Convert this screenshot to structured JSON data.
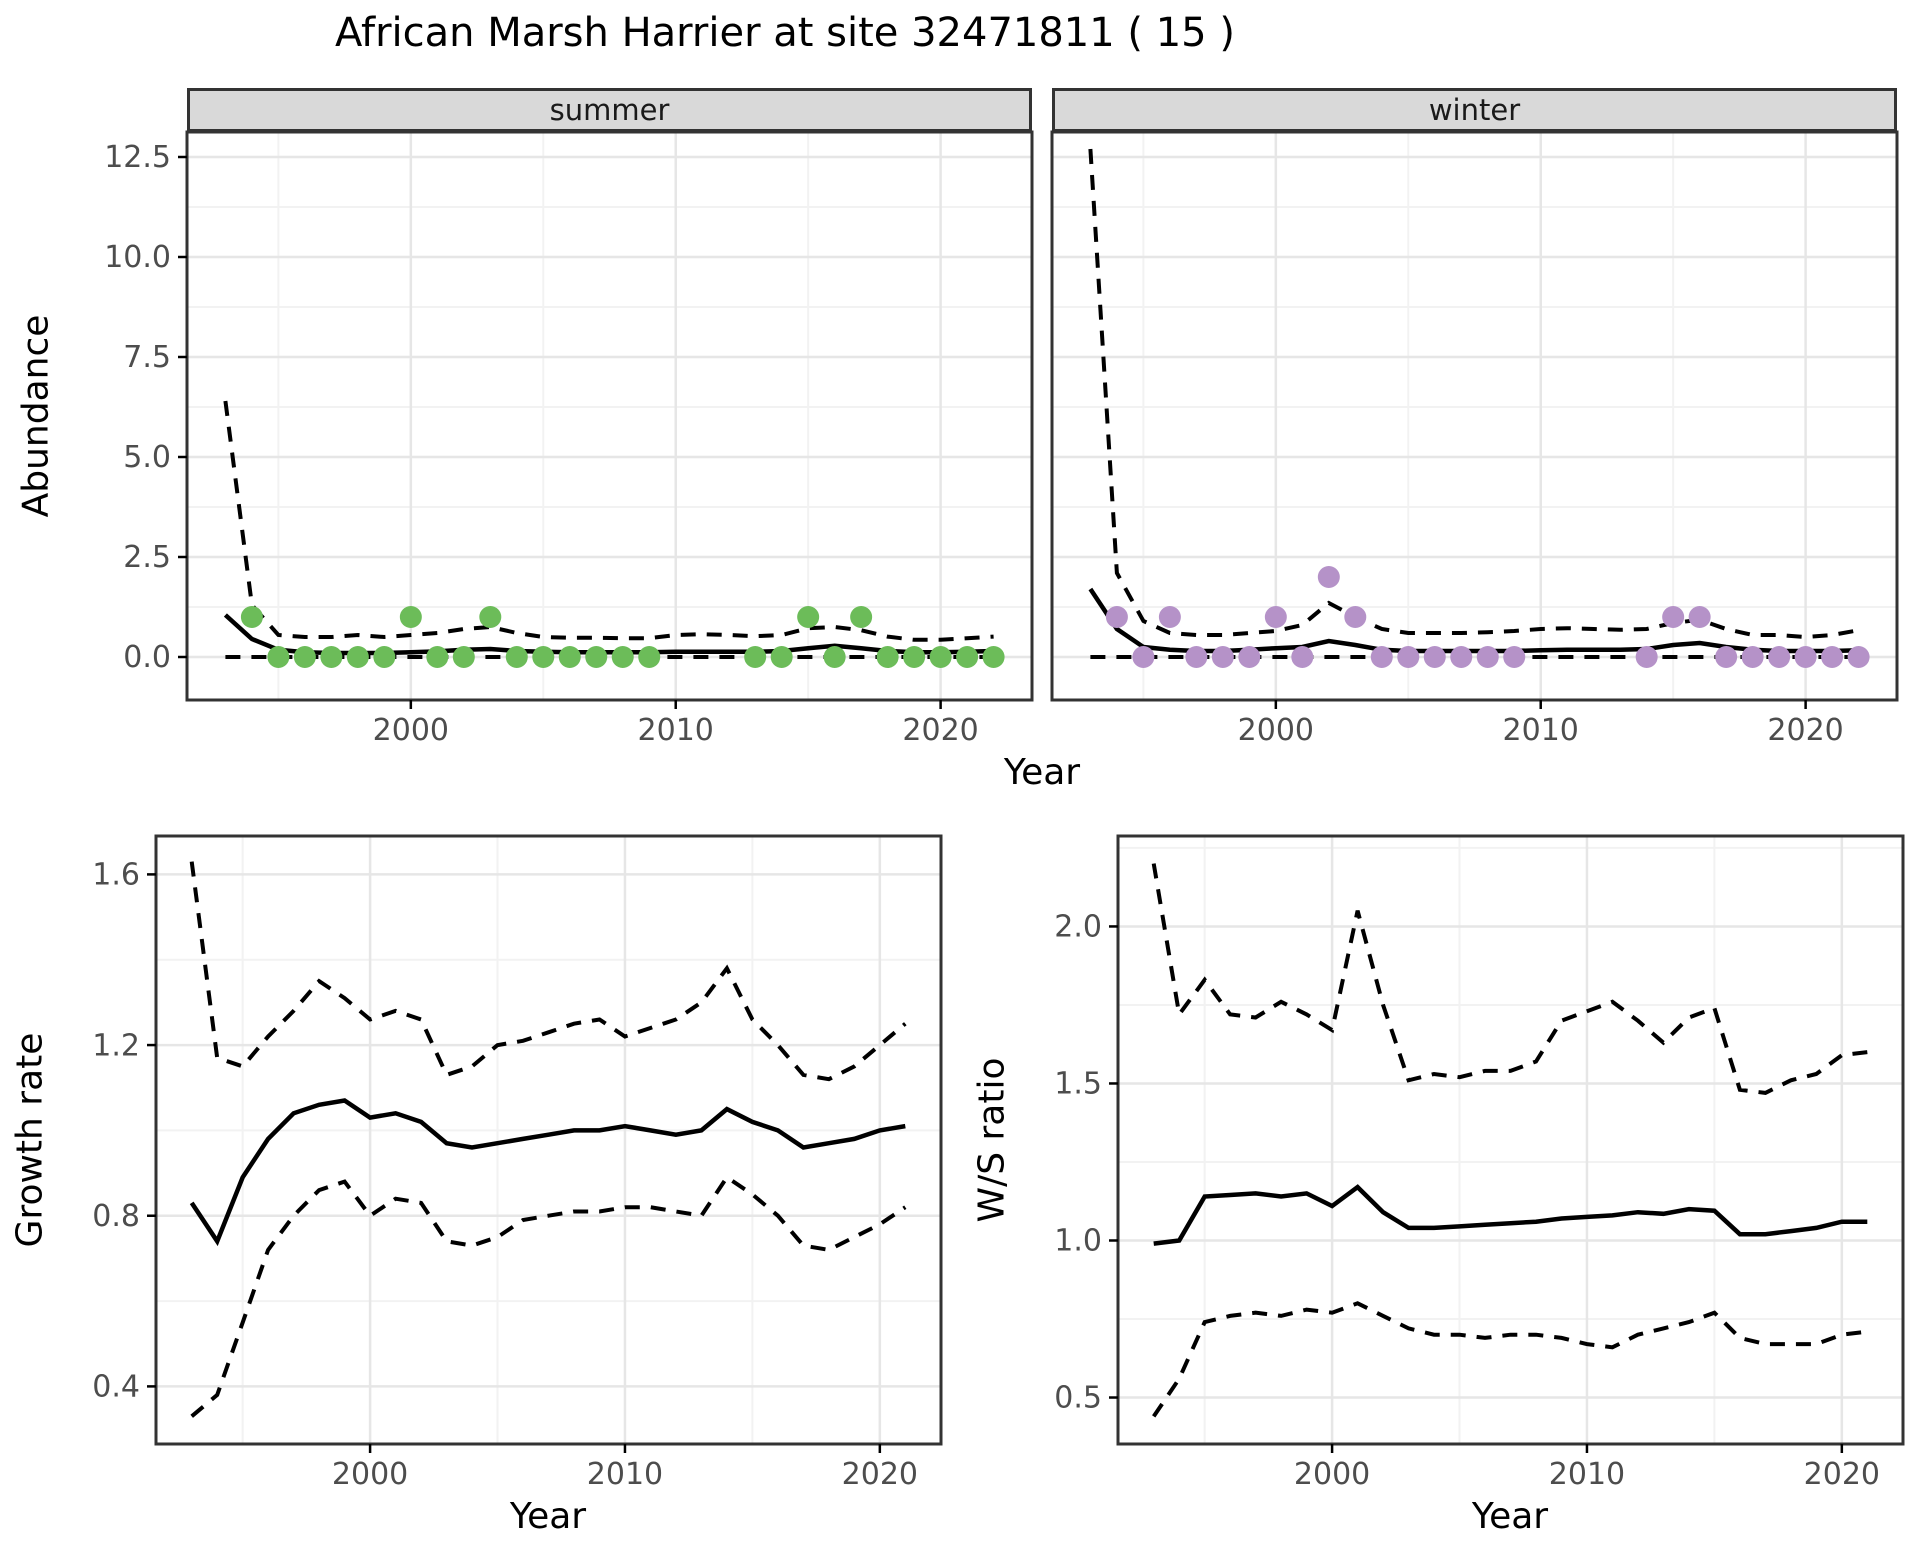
{
  "title": "African Marsh Harrier at site 32471811 ( 15 )",
  "facets": {
    "summer": "summer",
    "winter": "winter"
  },
  "axis_titles": {
    "abundance": "Abundance",
    "year_top": "Year",
    "growth": "Growth rate",
    "year_growth": "Year",
    "ws": "W/S ratio",
    "year_ws": "Year"
  },
  "colors": {
    "summer_points": "#6cbc59",
    "winter_points": "#b592c8",
    "line": "#000000",
    "strip_bg": "#d9d9d9",
    "grid_major": "#e6e6e6",
    "grid_minor": "#f2f2f2",
    "panel_border": "#333333",
    "tick_label": "#4d4d4d"
  },
  "chart_data": [
    {
      "id": "abundance_summer",
      "type": "line",
      "facet": "summer",
      "xlabel": "Year",
      "ylabel": "Abundance",
      "x_domain": [
        1991.55,
        2023.45
      ],
      "y_domain": [
        -1.075,
        13.125
      ],
      "x_major": [
        2000,
        2010,
        2020
      ],
      "x_major_labels": [
        "2000",
        "2010",
        "2020"
      ],
      "x_minor": [
        1995,
        2005,
        2015
      ],
      "y_major": [
        0,
        2.5,
        5,
        7.5,
        10,
        12.5
      ],
      "y_major_labels": [
        "0.0",
        "2.5",
        "5.0",
        "7.5",
        "10.0",
        "12.5"
      ],
      "y_minor": [
        1.25,
        3.75,
        6.25,
        8.75,
        11.25
      ],
      "years": [
        1993,
        1994,
        1995,
        1996,
        1997,
        1998,
        1999,
        2000,
        2001,
        2002,
        2003,
        2004,
        2005,
        2006,
        2007,
        2008,
        2009,
        2010,
        2011,
        2012,
        2013,
        2014,
        2015,
        2016,
        2017,
        2018,
        2019,
        2020,
        2021,
        2022
      ],
      "median": [
        1.05,
        0.45,
        0.18,
        0.12,
        0.1,
        0.1,
        0.1,
        0.12,
        0.14,
        0.18,
        0.2,
        0.15,
        0.13,
        0.12,
        0.12,
        0.12,
        0.12,
        0.13,
        0.13,
        0.13,
        0.13,
        0.15,
        0.22,
        0.28,
        0.22,
        0.15,
        0.12,
        0.12,
        0.13,
        0.15
      ],
      "upper": [
        6.4,
        1.3,
        0.55,
        0.5,
        0.5,
        0.55,
        0.5,
        0.55,
        0.6,
        0.7,
        0.75,
        0.6,
        0.5,
        0.48,
        0.48,
        0.47,
        0.47,
        0.55,
        0.57,
        0.55,
        0.52,
        0.55,
        0.72,
        0.75,
        0.67,
        0.51,
        0.43,
        0.43,
        0.47,
        0.51
      ],
      "lower": [
        0,
        0,
        0,
        0,
        0,
        0,
        0,
        0,
        0,
        0,
        0,
        0,
        0,
        0,
        0,
        0,
        0,
        0,
        0,
        0,
        0,
        0,
        0,
        0,
        0,
        0,
        0,
        0,
        0,
        0
      ],
      "points": {
        "color": "#6cbc59",
        "years": [
          1994,
          1995,
          1996,
          1997,
          1998,
          1999,
          2000,
          2001,
          2002,
          2003,
          2004,
          2005,
          2006,
          2007,
          2008,
          2009,
          2013,
          2014,
          2015,
          2016,
          2017,
          2018,
          2019,
          2020,
          2021,
          2022
        ],
        "values": [
          1,
          0,
          0,
          0,
          0,
          0,
          1,
          0,
          0,
          1,
          0,
          0,
          0,
          0,
          0,
          0,
          0,
          0,
          1,
          0,
          1,
          0,
          0,
          0,
          0,
          0
        ]
      }
    },
    {
      "id": "abundance_winter",
      "type": "line",
      "facet": "winter",
      "xlabel": "Year",
      "ylabel": "Abundance",
      "x_domain": [
        1991.55,
        2023.45
      ],
      "y_domain": [
        -1.075,
        13.125
      ],
      "x_major": [
        2000,
        2010,
        2020
      ],
      "x_major_labels": [
        "2000",
        "2010",
        "2020"
      ],
      "x_minor": [
        1995,
        2005,
        2015
      ],
      "y_major": [
        0,
        2.5,
        5,
        7.5,
        10,
        12.5
      ],
      "y_major_labels": [
        "0.0",
        "2.5",
        "5.0",
        "7.5",
        "10.0",
        "12.5"
      ],
      "y_minor": [
        1.25,
        3.75,
        6.25,
        8.75,
        11.25
      ],
      "years": [
        1993,
        1994,
        1995,
        1996,
        1997,
        1998,
        1999,
        2000,
        2001,
        2002,
        2003,
        2004,
        2005,
        2006,
        2007,
        2008,
        2009,
        2010,
        2011,
        2012,
        2013,
        2014,
        2015,
        2016,
        2017,
        2018,
        2019,
        2020,
        2021,
        2022
      ],
      "median": [
        1.7,
        0.7,
        0.25,
        0.18,
        0.15,
        0.15,
        0.18,
        0.22,
        0.25,
        0.4,
        0.3,
        0.18,
        0.15,
        0.15,
        0.15,
        0.15,
        0.15,
        0.17,
        0.18,
        0.18,
        0.18,
        0.2,
        0.3,
        0.35,
        0.25,
        0.18,
        0.15,
        0.15,
        0.15,
        0.17
      ],
      "upper": [
        12.7,
        2.1,
        0.9,
        0.6,
        0.55,
        0.55,
        0.6,
        0.65,
        0.8,
        1.35,
        1.0,
        0.7,
        0.6,
        0.6,
        0.6,
        0.62,
        0.65,
        0.7,
        0.72,
        0.7,
        0.68,
        0.7,
        0.85,
        0.93,
        0.7,
        0.55,
        0.55,
        0.5,
        0.55,
        0.67
      ],
      "lower": [
        0,
        0,
        0,
        0,
        0,
        0,
        0,
        0,
        0,
        0,
        0,
        0,
        0,
        0,
        0,
        0,
        0,
        0,
        0,
        0,
        0,
        0,
        0,
        0,
        0,
        0,
        0,
        0,
        0,
        0
      ],
      "points": {
        "color": "#b592c8",
        "years": [
          1994,
          1995,
          1996,
          1997,
          1998,
          1999,
          2000,
          2001,
          2002,
          2003,
          2004,
          2005,
          2006,
          2007,
          2008,
          2009,
          2014,
          2015,
          2016,
          2017,
          2018,
          2019,
          2020,
          2021,
          2022
        ],
        "values": [
          1,
          0,
          1,
          0,
          0,
          0,
          1,
          0,
          2,
          1,
          0,
          0,
          0,
          0,
          0,
          0,
          0,
          1,
          1,
          0,
          0,
          0,
          0,
          0,
          0
        ]
      }
    },
    {
      "id": "growth_rate",
      "type": "line",
      "xlabel": "Year",
      "ylabel": "Growth rate",
      "x_domain": [
        1991.6,
        2022.4
      ],
      "y_domain": [
        0.265,
        1.69
      ],
      "x_major": [
        2000,
        2010,
        2020
      ],
      "x_major_labels": [
        "2000",
        "2010",
        "2020"
      ],
      "x_minor": [
        1995,
        2005,
        2015
      ],
      "y_major": [
        0.4,
        0.8,
        1.2,
        1.6
      ],
      "y_major_labels": [
        "0.4",
        "0.8",
        "1.2",
        "1.6"
      ],
      "y_minor": [
        0.6,
        1.0,
        1.4
      ],
      "years": [
        1993,
        1994,
        1995,
        1996,
        1997,
        1998,
        1999,
        2000,
        2001,
        2002,
        2003,
        2004,
        2005,
        2006,
        2007,
        2008,
        2009,
        2010,
        2011,
        2012,
        2013,
        2014,
        2015,
        2016,
        2017,
        2018,
        2019,
        2020,
        2021
      ],
      "median": [
        0.83,
        0.74,
        0.89,
        0.98,
        1.04,
        1.06,
        1.07,
        1.03,
        1.04,
        1.02,
        0.97,
        0.96,
        0.97,
        0.98,
        0.99,
        1.0,
        1.0,
        1.01,
        1.0,
        0.99,
        1.0,
        1.05,
        1.02,
        1.0,
        0.96,
        0.97,
        0.98,
        1.0,
        1.01
      ],
      "upper": [
        1.63,
        1.17,
        1.15,
        1.22,
        1.28,
        1.35,
        1.31,
        1.26,
        1.28,
        1.26,
        1.13,
        1.15,
        1.2,
        1.21,
        1.23,
        1.25,
        1.26,
        1.22,
        1.24,
        1.26,
        1.3,
        1.38,
        1.26,
        1.2,
        1.13,
        1.12,
        1.15,
        1.2,
        1.25
      ],
      "lower": [
        0.33,
        0.38,
        0.55,
        0.72,
        0.8,
        0.86,
        0.88,
        0.8,
        0.84,
        0.83,
        0.74,
        0.73,
        0.75,
        0.79,
        0.8,
        0.81,
        0.81,
        0.82,
        0.82,
        0.81,
        0.8,
        0.89,
        0.85,
        0.8,
        0.73,
        0.72,
        0.75,
        0.78,
        0.82
      ]
    },
    {
      "id": "ws_ratio",
      "type": "line",
      "xlabel": "Year",
      "ylabel": "W/S ratio",
      "x_domain": [
        1991.6,
        2022.4
      ],
      "y_domain": [
        0.352,
        2.288
      ],
      "x_major": [
        2000,
        2010,
        2020
      ],
      "x_major_labels": [
        "2000",
        "2010",
        "2020"
      ],
      "x_minor": [
        1995,
        2005,
        2015
      ],
      "y_major": [
        0.5,
        1.0,
        1.5,
        2.0
      ],
      "y_major_labels": [
        "0.5",
        "1.0",
        "1.5",
        "2.0"
      ],
      "y_minor": [
        0.75,
        1.25,
        1.75,
        2.25
      ],
      "years": [
        1993,
        1994,
        1995,
        1996,
        1997,
        1998,
        1999,
        2000,
        2001,
        2002,
        2003,
        2004,
        2005,
        2006,
        2007,
        2008,
        2009,
        2010,
        2011,
        2012,
        2013,
        2014,
        2015,
        2016,
        2017,
        2018,
        2019,
        2020,
        2021
      ],
      "median": [
        0.99,
        1.0,
        1.14,
        1.145,
        1.15,
        1.14,
        1.15,
        1.11,
        1.17,
        1.09,
        1.04,
        1.04,
        1.045,
        1.05,
        1.055,
        1.06,
        1.07,
        1.075,
        1.08,
        1.09,
        1.085,
        1.1,
        1.095,
        1.02,
        1.02,
        1.03,
        1.04,
        1.06,
        1.06
      ],
      "upper": [
        2.2,
        1.72,
        1.83,
        1.72,
        1.71,
        1.76,
        1.72,
        1.67,
        2.05,
        1.75,
        1.51,
        1.53,
        1.52,
        1.54,
        1.54,
        1.57,
        1.7,
        1.73,
        1.76,
        1.7,
        1.63,
        1.71,
        1.74,
        1.48,
        1.47,
        1.51,
        1.53,
        1.59,
        1.6
      ],
      "lower": [
        0.44,
        0.56,
        0.74,
        0.76,
        0.77,
        0.76,
        0.78,
        0.77,
        0.8,
        0.76,
        0.72,
        0.7,
        0.7,
        0.69,
        0.7,
        0.7,
        0.69,
        0.67,
        0.66,
        0.7,
        0.72,
        0.74,
        0.77,
        0.69,
        0.67,
        0.67,
        0.67,
        0.7,
        0.71
      ]
    }
  ]
}
